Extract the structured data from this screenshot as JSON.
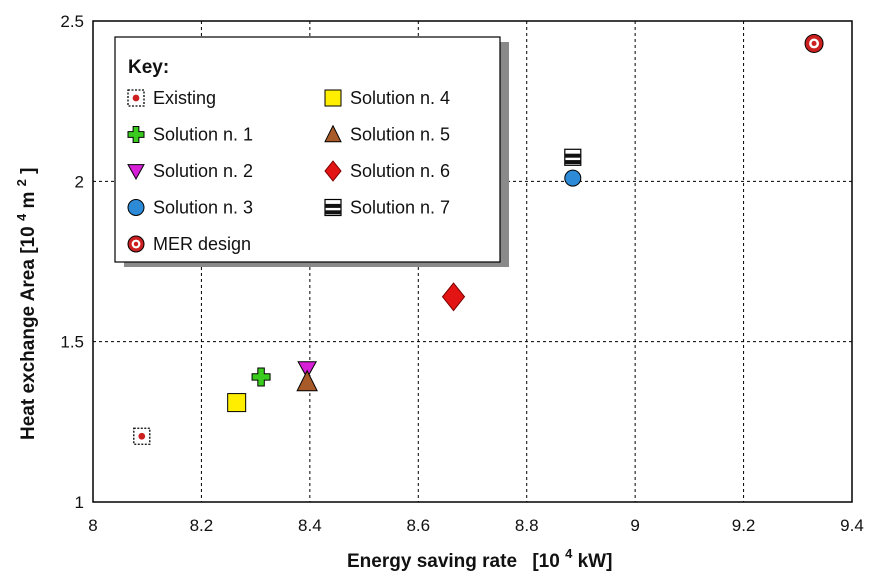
{
  "chart_data": {
    "type": "scatter",
    "xlabel": "Energy saving rate",
    "xlabel_unit": "[10",
    "xlabel_unit_exp": "4",
    "xlabel_unit_rest": " kW]",
    "ylabel": "Heat exchange Area [10",
    "ylabel_unit_exp": "4",
    "ylabel_unit_rest": " m",
    "ylabel_unit_exp2": "2",
    "ylabel_end": "]",
    "xlim": [
      8,
      9.4
    ],
    "ylim": [
      1,
      2.5
    ],
    "x_ticks": [
      "8",
      "8.2",
      "8.4",
      "8.6",
      "8.8",
      "9",
      "9.2",
      "9.4"
    ],
    "y_ticks": [
      "1",
      "1.5",
      "2",
      "2.5"
    ],
    "grid": true,
    "legend_title": "Key:",
    "legend_placement": "top-left",
    "series": [
      {
        "name": "Existing",
        "marker": "square-dot",
        "color": "#cc1f1f",
        "x": 8.09,
        "y": 1.205
      },
      {
        "name": "Solution n. 1",
        "marker": "plus",
        "color": "#39cc1f",
        "x": 8.31,
        "y": 1.39
      },
      {
        "name": "Solution n. 2",
        "marker": "triangle-down",
        "color": "#d81fd8",
        "x": 8.395,
        "y": 1.415
      },
      {
        "name": "Solution n. 3",
        "marker": "circle",
        "color": "#2d8ad6",
        "x": 8.885,
        "y": 2.01
      },
      {
        "name": "MER design",
        "marker": "ring",
        "color": "#cc1f1f",
        "x": 9.33,
        "y": 2.43
      },
      {
        "name": "Solution n. 4",
        "marker": "square",
        "color": "#ffee00",
        "x": 8.265,
        "y": 1.31
      },
      {
        "name": "Solution n. 5",
        "marker": "triangle-up",
        "color": "#a85a28",
        "x": 8.395,
        "y": 1.375
      },
      {
        "name": "Solution n. 6",
        "marker": "diamond",
        "color": "#e31414",
        "x": 8.665,
        "y": 1.64
      },
      {
        "name": "Solution n. 7",
        "marker": "square-lines",
        "color": "#111111",
        "x": 8.885,
        "y": 2.075
      }
    ]
  }
}
